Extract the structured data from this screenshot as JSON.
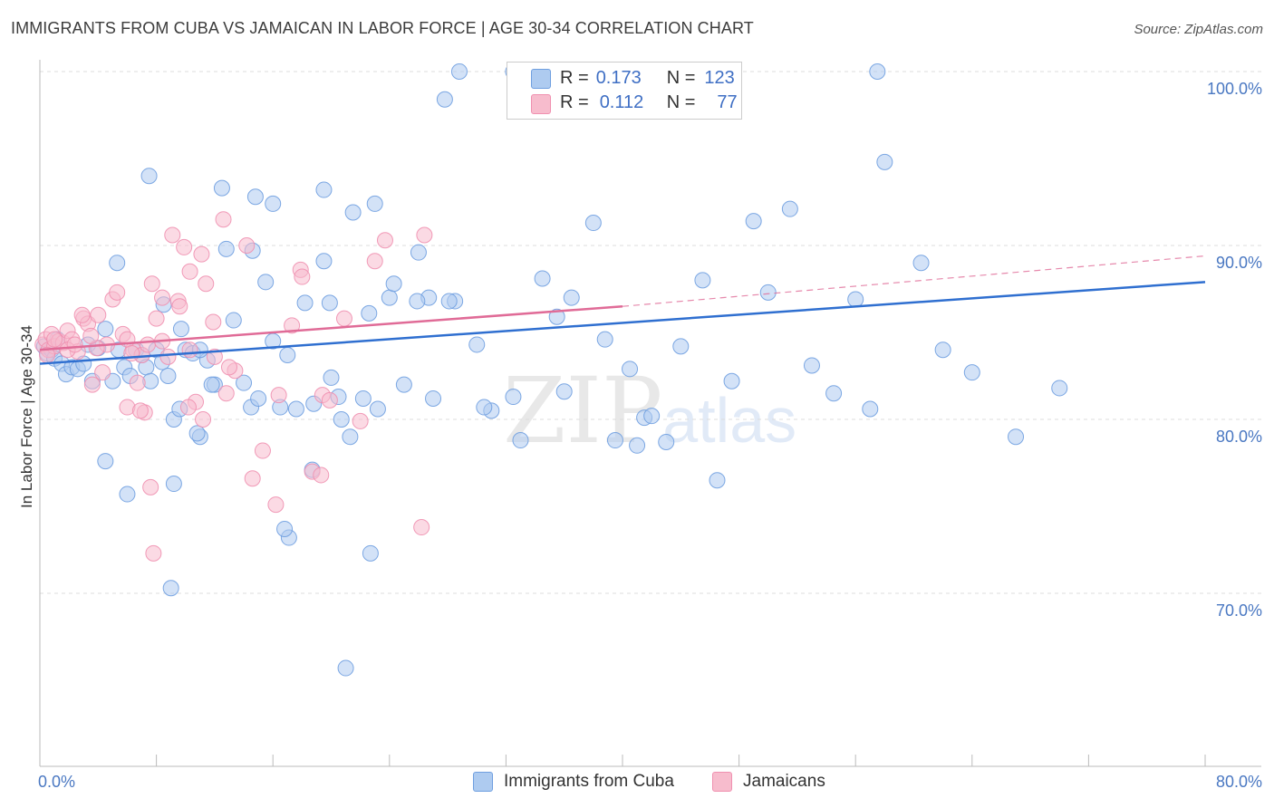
{
  "title": "IMMIGRANTS FROM CUBA VS JAMAICAN IN LABOR FORCE | AGE 30-34 CORRELATION CHART",
  "source": "Source: ZipAtlas.com",
  "watermark": {
    "zip": "ZIP",
    "atlas": "atlas"
  },
  "legend_top": [
    {
      "r_label": "R =",
      "r_value": "0.173",
      "n_label": "N =",
      "n_value": "123",
      "color": "#aecbf0"
    },
    {
      "r_label": "R =",
      "r_value": "0.112",
      "n_label": "N =",
      "n_value": "77",
      "color": "#f7bccd"
    }
  ],
  "chart_data": {
    "type": "scatter",
    "title": "IMMIGRANTS FROM CUBA VS JAMAICAN IN LABOR FORCE | AGE 30-34 CORRELATION CHART",
    "xlabel": "",
    "ylabel": "In Labor Force | Age 30-34",
    "xlim": [
      0,
      80
    ],
    "ylim": [
      60,
      102
    ],
    "x_tick_labels": [
      "0.0%",
      "80.0%"
    ],
    "y_ticks": [
      70,
      80,
      90,
      100
    ],
    "y_tick_labels": [
      "70.0%",
      "80.0%",
      "90.0%",
      "100.0%"
    ],
    "grid": true,
    "legend_position": "top-center",
    "series": [
      {
        "name": "Immigrants from Cuba",
        "color": "#6f9fe0",
        "fill": "#aecbf0",
        "line_color": "#2f6fd0",
        "trend": {
          "x": [
            0,
            80
          ],
          "y": [
            83.2,
            87.9
          ]
        },
        "points": [
          [
            0.3,
            84.2
          ],
          [
            0.5,
            83.8
          ],
          [
            0.8,
            84.0
          ],
          [
            1.0,
            83.5
          ],
          [
            1.2,
            84.6
          ],
          [
            1.5,
            83.2
          ],
          [
            1.8,
            82.6
          ],
          [
            2.2,
            83.0
          ],
          [
            2.6,
            82.9
          ],
          [
            3.0,
            83.2
          ],
          [
            3.3,
            84.3
          ],
          [
            3.6,
            82.2
          ],
          [
            4.0,
            84.1
          ],
          [
            4.5,
            85.2
          ],
          [
            5.0,
            82.2
          ],
          [
            5.4,
            84.0
          ],
          [
            5.8,
            83.0
          ],
          [
            6.2,
            82.5
          ],
          [
            6.6,
            84.0
          ],
          [
            7.0,
            83.7
          ],
          [
            7.3,
            83.0
          ],
          [
            7.6,
            82.2
          ],
          [
            8.0,
            84.0
          ],
          [
            8.4,
            83.3
          ],
          [
            8.8,
            82.5
          ],
          [
            9.2,
            80.0
          ],
          [
            9.6,
            80.6
          ],
          [
            10.0,
            84.0
          ],
          [
            10.5,
            83.8
          ],
          [
            11.0,
            79.0
          ],
          [
            11.5,
            83.4
          ],
          [
            12.0,
            82.0
          ],
          [
            12.8,
            89.8
          ],
          [
            13.3,
            85.7
          ],
          [
            14.0,
            82.1
          ],
          [
            14.5,
            80.7
          ],
          [
            15.0,
            81.2
          ],
          [
            15.5,
            87.9
          ],
          [
            16.0,
            84.5
          ],
          [
            16.5,
            80.7
          ],
          [
            17.0,
            83.7
          ],
          [
            17.6,
            80.6
          ],
          [
            18.2,
            86.7
          ],
          [
            18.8,
            80.9
          ],
          [
            19.5,
            89.1
          ],
          [
            20.0,
            82.4
          ],
          [
            20.5,
            81.3
          ],
          [
            21.3,
            79.0
          ],
          [
            22.2,
            81.2
          ],
          [
            23.2,
            80.6
          ],
          [
            24.0,
            87.0
          ],
          [
            25.0,
            82.0
          ],
          [
            26.0,
            89.6
          ],
          [
            27.0,
            81.2
          ],
          [
            28.5,
            86.8
          ],
          [
            30.0,
            84.3
          ],
          [
            31.0,
            80.5
          ],
          [
            32.5,
            81.3
          ],
          [
            34.5,
            88.1
          ],
          [
            35.5,
            85.9
          ],
          [
            36.5,
            87.0
          ],
          [
            38.0,
            91.3
          ],
          [
            39.5,
            78.8
          ],
          [
            40.5,
            82.9
          ],
          [
            41.5,
            80.1
          ],
          [
            42.0,
            80.2
          ],
          [
            43.0,
            78.7
          ],
          [
            44.0,
            84.2
          ],
          [
            45.5,
            88.0
          ],
          [
            46.5,
            76.5
          ],
          [
            47.5,
            82.2
          ],
          [
            49.0,
            91.4
          ],
          [
            50.0,
            87.3
          ],
          [
            51.5,
            92.1
          ],
          [
            53.0,
            83.1
          ],
          [
            54.5,
            81.5
          ],
          [
            56.0,
            86.9
          ],
          [
            57.0,
            80.6
          ],
          [
            58.0,
            94.8
          ],
          [
            60.5,
            89.0
          ],
          [
            62.0,
            84.0
          ],
          [
            64.0,
            82.7
          ],
          [
            67.0,
            79.0
          ],
          [
            70.0,
            81.8
          ],
          [
            8.5,
            86.6
          ],
          [
            12.5,
            93.3
          ],
          [
            14.8,
            92.8
          ],
          [
            16.0,
            92.4
          ],
          [
            19.5,
            93.2
          ],
          [
            21.5,
            91.9
          ],
          [
            23.0,
            92.4
          ],
          [
            7.5,
            94.0
          ],
          [
            5.3,
            89.0
          ],
          [
            26.7,
            87.0
          ],
          [
            27.8,
            98.4
          ],
          [
            28.8,
            100.0
          ],
          [
            32.5,
            100.0
          ],
          [
            57.5,
            100.0
          ],
          [
            21.0,
            65.7
          ],
          [
            9.0,
            70.3
          ],
          [
            9.2,
            76.3
          ],
          [
            22.7,
            72.3
          ],
          [
            17.1,
            73.2
          ],
          [
            16.8,
            73.7
          ],
          [
            18.7,
            77.1
          ],
          [
            4.5,
            77.6
          ],
          [
            6.0,
            75.7
          ],
          [
            11.8,
            82.0
          ],
          [
            11.0,
            84.0
          ],
          [
            19.9,
            86.7
          ],
          [
            22.6,
            86.1
          ],
          [
            25.9,
            86.8
          ],
          [
            28.1,
            86.8
          ],
          [
            30.5,
            80.7
          ],
          [
            33.0,
            78.8
          ],
          [
            38.8,
            84.6
          ],
          [
            36.0,
            81.6
          ],
          [
            41.0,
            78.5
          ],
          [
            10.8,
            79.2
          ],
          [
            14.6,
            89.7
          ],
          [
            9.7,
            85.2
          ],
          [
            24.3,
            87.8
          ],
          [
            20.7,
            80.0
          ]
        ]
      },
      {
        "name": "Jamaicans",
        "color": "#f090b0",
        "fill": "#f7bccd",
        "line_color": "#e06b97",
        "trend": {
          "x": [
            0,
            40
          ],
          "y": [
            84.0,
            86.5
          ]
        },
        "trend_dashed": {
          "x": [
            40,
            80
          ],
          "y": [
            86.5,
            89.4
          ]
        },
        "points": [
          [
            0.2,
            84.3
          ],
          [
            0.4,
            84.6
          ],
          [
            0.6,
            84.0
          ],
          [
            0.8,
            84.9
          ],
          [
            1.0,
            84.2
          ],
          [
            1.3,
            84.5
          ],
          [
            1.6,
            84.4
          ],
          [
            1.9,
            85.1
          ],
          [
            2.2,
            84.6
          ],
          [
            2.6,
            83.9
          ],
          [
            3.0,
            85.8
          ],
          [
            3.3,
            85.5
          ],
          [
            3.6,
            82.0
          ],
          [
            4.0,
            86.0
          ],
          [
            4.3,
            82.7
          ],
          [
            4.6,
            84.3
          ],
          [
            5.0,
            86.9
          ],
          [
            5.3,
            87.3
          ],
          [
            5.7,
            84.9
          ],
          [
            6.0,
            80.7
          ],
          [
            6.4,
            84.0
          ],
          [
            6.7,
            82.1
          ],
          [
            7.0,
            83.7
          ],
          [
            7.4,
            84.3
          ],
          [
            7.7,
            87.8
          ],
          [
            8.0,
            85.8
          ],
          [
            8.4,
            87.0
          ],
          [
            8.8,
            83.6
          ],
          [
            9.1,
            90.6
          ],
          [
            9.5,
            86.8
          ],
          [
            9.9,
            89.9
          ],
          [
            10.3,
            88.5
          ],
          [
            10.7,
            81.0
          ],
          [
            11.1,
            89.5
          ],
          [
            11.4,
            87.8
          ],
          [
            12.0,
            83.6
          ],
          [
            12.6,
            91.5
          ],
          [
            13.4,
            82.8
          ],
          [
            14.2,
            90.0
          ],
          [
            15.3,
            78.2
          ],
          [
            16.2,
            75.1
          ],
          [
            17.3,
            85.4
          ],
          [
            17.9,
            88.6
          ],
          [
            18.7,
            77.0
          ],
          [
            19.4,
            81.4
          ],
          [
            19.9,
            81.1
          ],
          [
            20.9,
            85.8
          ],
          [
            22.0,
            79.9
          ],
          [
            23.0,
            89.1
          ],
          [
            23.7,
            90.3
          ],
          [
            26.4,
            90.6
          ],
          [
            26.2,
            73.8
          ],
          [
            12.8,
            81.5
          ],
          [
            10.2,
            80.7
          ],
          [
            7.6,
            76.1
          ],
          [
            7.8,
            72.3
          ],
          [
            14.6,
            76.6
          ],
          [
            19.3,
            76.8
          ],
          [
            18.0,
            88.2
          ],
          [
            16.4,
            81.4
          ],
          [
            13.0,
            83.0
          ],
          [
            11.9,
            85.6
          ],
          [
            7.2,
            80.4
          ],
          [
            10.3,
            84.0
          ],
          [
            8.4,
            84.5
          ],
          [
            6.0,
            84.6
          ],
          [
            2.9,
            86.0
          ],
          [
            1.9,
            84.0
          ],
          [
            1.0,
            84.6
          ],
          [
            0.5,
            83.7
          ],
          [
            3.9,
            84.1
          ],
          [
            6.3,
            83.8
          ],
          [
            9.6,
            86.5
          ],
          [
            11.2,
            80.0
          ],
          [
            6.9,
            80.5
          ],
          [
            3.5,
            84.8
          ],
          [
            2.4,
            84.3
          ]
        ]
      }
    ]
  },
  "legend_bottom": [
    {
      "label": "Immigrants from Cuba",
      "color": "#aecbf0"
    },
    {
      "label": "Jamaicans",
      "color": "#f7bccd"
    }
  ]
}
